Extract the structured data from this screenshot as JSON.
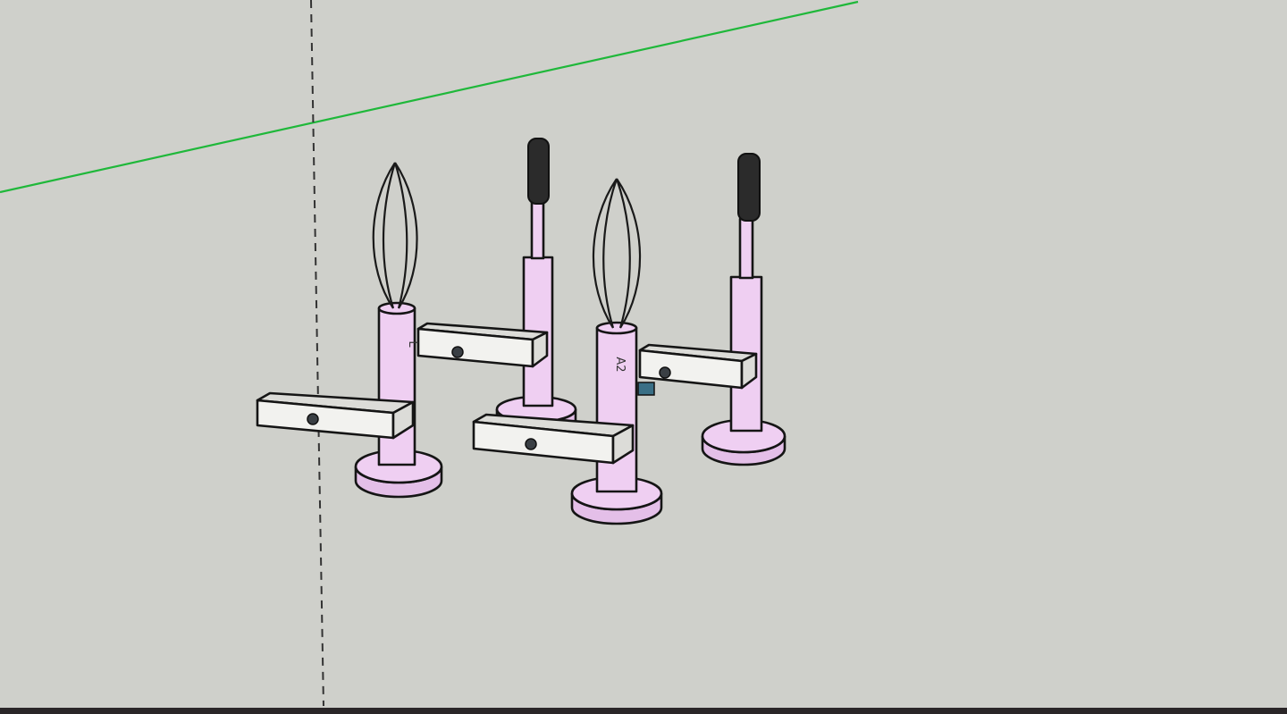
{
  "viewport": {
    "labels": [
      "L",
      "A2"
    ]
  }
}
